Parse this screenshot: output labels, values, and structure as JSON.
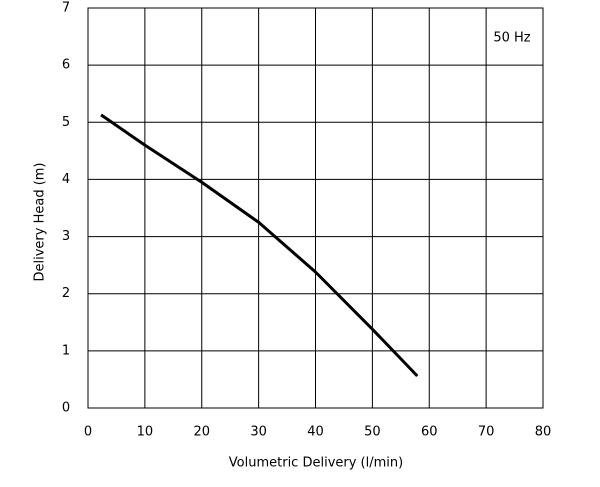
{
  "chart_data": {
    "type": "line",
    "x_label": "Volumetric Delivery (l/min)",
    "y_label": "Delivery Head (m)",
    "annotation": "50 Hz",
    "series": [
      {
        "color": "#000000",
        "x": [
          2.3,
          10,
          20,
          30,
          40,
          50,
          57.9
        ],
        "values": [
          5.13,
          4.6,
          3.95,
          3.25,
          2.38,
          1.38,
          0.56
        ]
      }
    ],
    "xlim": [
      0,
      80
    ],
    "xticks": [
      0,
      10,
      20,
      30,
      40,
      50,
      60,
      70,
      80
    ],
    "ylim": [
      0,
      7
    ],
    "yticks": [
      0,
      1,
      2,
      3,
      4,
      5,
      6,
      7
    ],
    "grid": true
  }
}
